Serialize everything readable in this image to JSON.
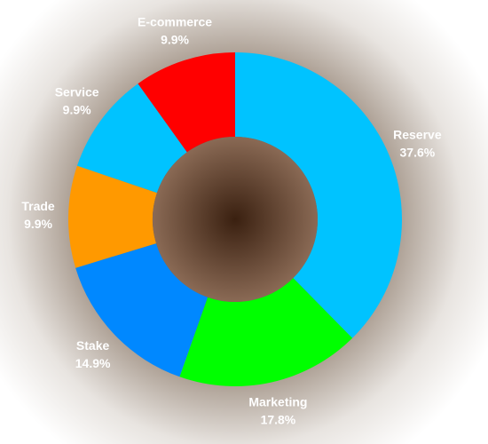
{
  "chart_data": {
    "type": "donut",
    "categories": [
      "Reserve",
      "Marketing",
      "Stake",
      "Trade",
      "Service",
      "E-commerce"
    ],
    "values": [
      37.6,
      17.8,
      14.9,
      9.9,
      9.9,
      9.9
    ],
    "value_labels": [
      "37.6%",
      "17.8%",
      "14.9%",
      "9.9%",
      "9.9%",
      "9.9%"
    ],
    "colors": [
      "#00c3ff",
      "#00ff00",
      "#0088ff",
      "#ff9900",
      "#00c3ff",
      "#ff0000"
    ]
  }
}
